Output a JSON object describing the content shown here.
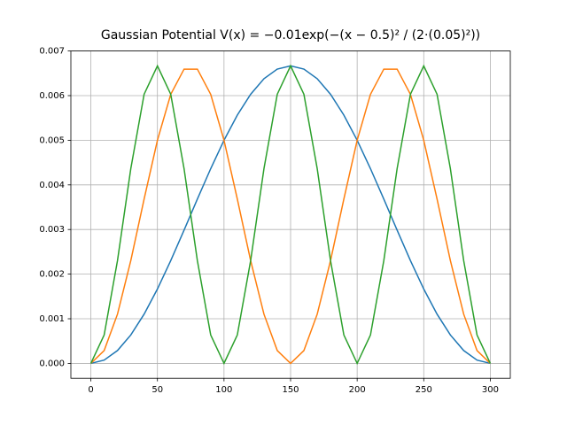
{
  "chart_data": {
    "type": "line",
    "title": "Gaussian Potential V(x) = −0.01exp(−(x − 0.5)² / (2·(0.05)²))",
    "x": [
      0,
      10,
      20,
      30,
      40,
      50,
      60,
      70,
      80,
      90,
      100,
      110,
      120,
      130,
      140,
      150,
      160,
      170,
      180,
      190,
      200,
      210,
      220,
      230,
      240,
      250,
      260,
      270,
      280,
      290,
      300
    ],
    "series": [
      {
        "color": "#1f77b4",
        "values": [
          0,
          7.3e-05,
          0.000288,
          0.000637,
          0.001103,
          0.001667,
          0.002303,
          0.002985,
          0.003682,
          0.004363,
          0.005,
          0.005564,
          0.00603,
          0.006379,
          0.006594,
          0.006667,
          0.006594,
          0.006379,
          0.00603,
          0.005564,
          0.005,
          0.004363,
          0.003682,
          0.002985,
          0.002303,
          0.001667,
          0.001103,
          0.000637,
          0.000288,
          7.3e-05,
          0
        ]
      },
      {
        "color": "#ff7f0e",
        "values": [
          0,
          0.000288,
          0.001103,
          0.002303,
          0.003682,
          0.005,
          0.00603,
          0.006594,
          0.006594,
          0.00603,
          0.005,
          0.003682,
          0.002303,
          0.001103,
          0.000288,
          0,
          0.000288,
          0.001103,
          0.002303,
          0.003682,
          0.005,
          0.00603,
          0.006594,
          0.006594,
          0.00603,
          0.005,
          0.003682,
          0.002303,
          0.001103,
          0.000288,
          0
        ]
      },
      {
        "color": "#2ca02c",
        "values": [
          0,
          0.000637,
          0.002303,
          0.004363,
          0.00603,
          0.006667,
          0.00603,
          0.004363,
          0.002303,
          0.000637,
          0,
          0.000637,
          0.002303,
          0.004363,
          0.00603,
          0.006667,
          0.00603,
          0.004363,
          0.002303,
          0.000637,
          0,
          0.000637,
          0.002303,
          0.004363,
          0.00603,
          0.006667,
          0.00603,
          0.004363,
          0.002303,
          0.000637,
          0
        ]
      }
    ],
    "xlim": [
      -15,
      315
    ],
    "ylim": [
      -0.000333,
      0.007
    ],
    "xticks": [
      0,
      50,
      100,
      150,
      200,
      250,
      300
    ],
    "yticks": [
      {
        "value": 0,
        "label": "0.000"
      },
      {
        "value": 0.001,
        "label": "0.001"
      },
      {
        "value": 0.002,
        "label": "0.002"
      },
      {
        "value": 0.003,
        "label": "0.003"
      },
      {
        "value": 0.004,
        "label": "0.004"
      },
      {
        "value": 0.005,
        "label": "0.005"
      },
      {
        "value": 0.006,
        "label": "0.006"
      },
      {
        "value": 0.007,
        "label": "0.007"
      }
    ],
    "grid": true
  }
}
